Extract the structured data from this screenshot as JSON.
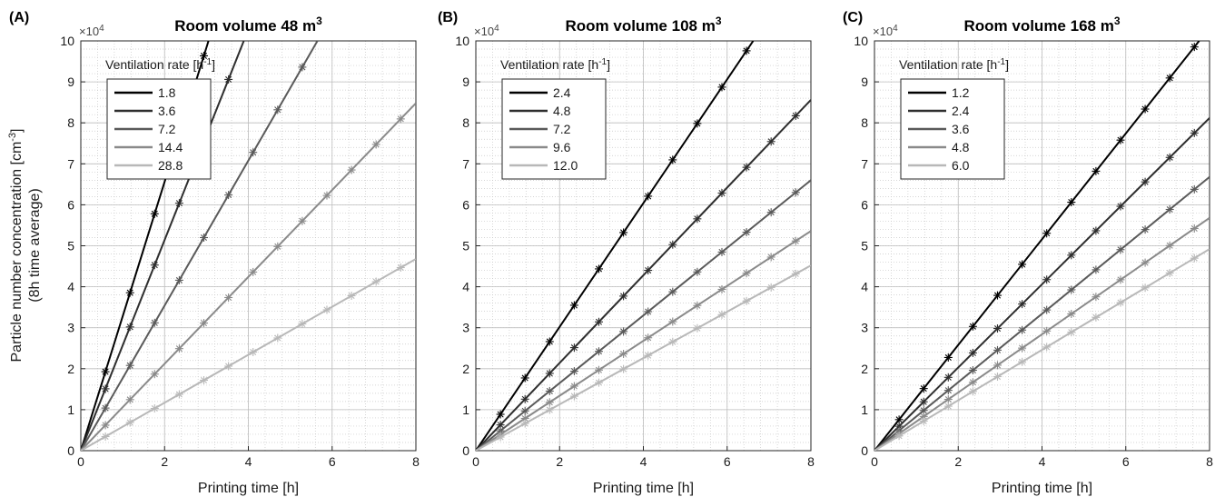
{
  "figure": {
    "ylabel_line1": "Particle number concentration [cm",
    "ylabel_sup": "-3",
    "ylabel_line1_end": "]",
    "ylabel_line2": "(8h time average)"
  },
  "chart_data": [
    {
      "type": "line",
      "panel_label": "(A)",
      "title": "Room volume 48 m",
      "title_sup": "3",
      "xlabel": "Printing time [h]",
      "ylabel": "",
      "xlim": [
        0,
        8
      ],
      "ylim": [
        0,
        100000
      ],
      "exponent_label": "×10",
      "exponent_power": "4",
      "xticks": [
        "0",
        "2",
        "4",
        "6",
        "8"
      ],
      "yticks": [
        "0",
        "1",
        "2",
        "3",
        "4",
        "5",
        "6",
        "7",
        "8",
        "9",
        "10"
      ],
      "grid": true,
      "legend_position": "top-left",
      "legend_title": "Ventilation rate [h",
      "legend_title_sup": "-1",
      "legend_title_end": "]",
      "series": [
        {
          "name": "1.8",
          "color": "#000000",
          "slope": 32800
        },
        {
          "name": "3.6",
          "color": "#2e2e2e",
          "slope": 25700
        },
        {
          "name": "7.2",
          "color": "#5a5a5a",
          "slope": 17700
        },
        {
          "name": "14.4",
          "color": "#8a8a8a",
          "slope": 10600
        },
        {
          "name": "28.8",
          "color": "#b8b8b8",
          "slope": 5850
        }
      ]
    },
    {
      "type": "line",
      "panel_label": "(B)",
      "title": "Room volume 108 m",
      "title_sup": "3",
      "xlabel": "Printing time [h]",
      "ylabel": "",
      "xlim": [
        0,
        8
      ],
      "ylim": [
        0,
        100000
      ],
      "exponent_label": "×10",
      "exponent_power": "4",
      "xticks": [
        "0",
        "2",
        "4",
        "6",
        "8"
      ],
      "yticks": [
        "0",
        "1",
        "2",
        "3",
        "4",
        "5",
        "6",
        "7",
        "8",
        "9",
        "10"
      ],
      "grid": true,
      "legend_position": "top-left",
      "legend_title": "Ventilation rate [h",
      "legend_title_sup": "-1",
      "legend_title_end": "]",
      "series": [
        {
          "name": "2.4",
          "color": "#000000",
          "slope": 15100
        },
        {
          "name": "4.8",
          "color": "#2e2e2e",
          "slope": 10700
        },
        {
          "name": "7.2",
          "color": "#5a5a5a",
          "slope": 8250
        },
        {
          "name": "9.6",
          "color": "#8a8a8a",
          "slope": 6700
        },
        {
          "name": "12.0",
          "color": "#b8b8b8",
          "slope": 5650
        }
      ]
    },
    {
      "type": "line",
      "panel_label": "(C)",
      "title": "Room volume 168 m",
      "title_sup": "3",
      "xlabel": "Printing time [h]",
      "ylabel": "",
      "xlim": [
        0,
        8
      ],
      "ylim": [
        0,
        100000
      ],
      "exponent_label": "×10",
      "exponent_power": "4",
      "xticks": [
        "0",
        "2",
        "4",
        "6",
        "8"
      ],
      "yticks": [
        "0",
        "1",
        "2",
        "3",
        "4",
        "5",
        "6",
        "7",
        "8",
        "9",
        "10"
      ],
      "grid": true,
      "legend_position": "top-left",
      "legend_title": "Ventilation rate [h",
      "legend_title_sup": "-1",
      "legend_title_end": "]",
      "series": [
        {
          "name": "1.2",
          "color": "#000000",
          "slope": 12900
        },
        {
          "name": "2.4",
          "color": "#2e2e2e",
          "slope": 10150
        },
        {
          "name": "3.6",
          "color": "#5a5a5a",
          "slope": 8350
        },
        {
          "name": "4.8",
          "color": "#8a8a8a",
          "slope": 7100
        },
        {
          "name": "6.0",
          "color": "#b8b8b8",
          "slope": 6150
        }
      ]
    }
  ]
}
